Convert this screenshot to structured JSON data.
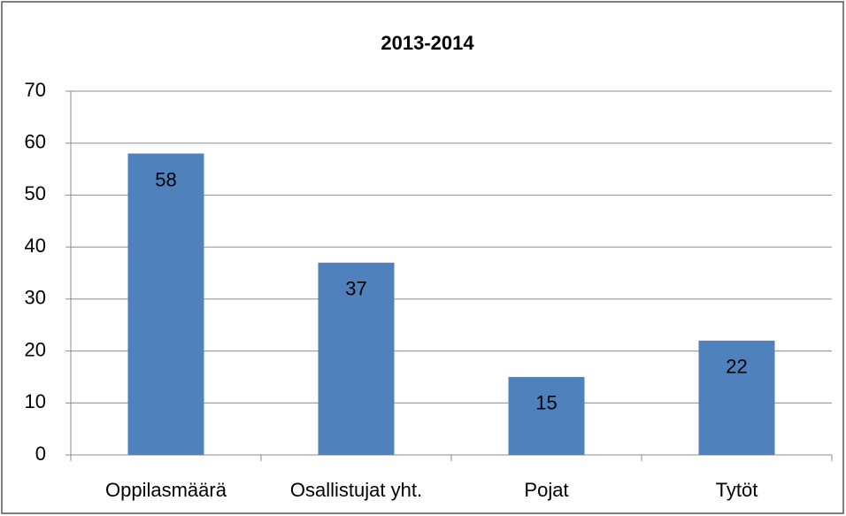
{
  "chart_data": {
    "type": "bar",
    "title": "2013-2014",
    "categories": [
      "Oppilasmäärä",
      "Osallistujat yht.",
      "Pojat",
      "Tytöt"
    ],
    "values": [
      58,
      37,
      15,
      22
    ],
    "color": "#4f81bd",
    "ylim": [
      0,
      70
    ],
    "yticks": [
      0,
      10,
      20,
      30,
      40,
      50,
      60,
      70
    ],
    "grid": true,
    "data_labels": true
  }
}
